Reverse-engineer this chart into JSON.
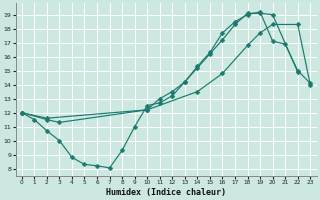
{
  "xlabel": "Humidex (Indice chaleur)",
  "bg_color": "#cce8e0",
  "line_color": "#1a7a6e",
  "grid_color": "#ffffff",
  "xlim": [
    -0.5,
    23.5
  ],
  "ylim": [
    7.5,
    19.8
  ],
  "xticks": [
    0,
    1,
    2,
    3,
    4,
    5,
    6,
    7,
    8,
    9,
    10,
    11,
    12,
    13,
    14,
    15,
    16,
    17,
    18,
    19,
    20,
    21,
    22,
    23
  ],
  "yticks": [
    8,
    9,
    10,
    11,
    12,
    13,
    14,
    15,
    16,
    17,
    18,
    19
  ],
  "line1_x": [
    0,
    1,
    2,
    3,
    4,
    5,
    6,
    7,
    8,
    9,
    10,
    11,
    12,
    13,
    14,
    15,
    16,
    17,
    18,
    19,
    20,
    21,
    22,
    23
  ],
  "line1_y": [
    12.0,
    11.5,
    10.7,
    10.0,
    8.8,
    8.3,
    8.2,
    8.05,
    9.3,
    11.0,
    12.5,
    12.7,
    13.2,
    14.2,
    15.3,
    16.3,
    17.7,
    18.5,
    19.0,
    19.2,
    17.1,
    16.9,
    15.0,
    14.1
  ],
  "line2_x": [
    0,
    2,
    3,
    10,
    11,
    12,
    13,
    14,
    15,
    16,
    17,
    18,
    19,
    20,
    22
  ],
  "line2_y": [
    12.0,
    11.5,
    11.3,
    12.2,
    13.0,
    13.5,
    14.2,
    15.2,
    16.2,
    17.2,
    18.3,
    19.1,
    19.1,
    19.0,
    14.9
  ],
  "line3_x": [
    0,
    2,
    10,
    14,
    16,
    18,
    19,
    20,
    22,
    23
  ],
  "line3_y": [
    12.0,
    11.6,
    12.2,
    13.5,
    14.8,
    16.8,
    17.7,
    18.3,
    18.3,
    14.0
  ]
}
